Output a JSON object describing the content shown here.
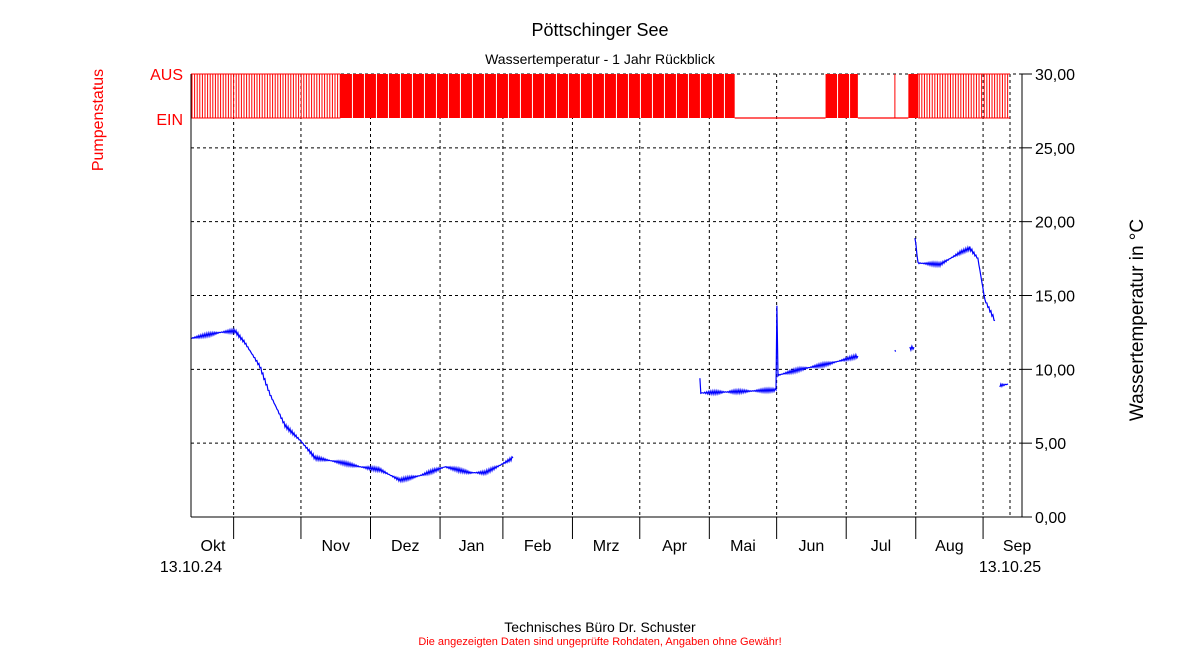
{
  "chart_data": {
    "type": "line",
    "title": "Pöttschinger See",
    "subtitle": "Wassertemperatur - 1 Jahr Rückblick",
    "ylabel": "Wassertemperatur in °C",
    "pump_label": "Pumpenstatus",
    "pump_states": [
      "AUS",
      "EIN"
    ],
    "ylim": [
      0,
      30
    ],
    "yticks": [
      "0,00",
      "5,00",
      "10,00",
      "15,00",
      "20,00",
      "25,00",
      "30,00"
    ],
    "start_date": "13.10.24",
    "end_date": "13.10.25",
    "x_unit": "days since 13.10.24",
    "xlim": [
      0,
      370
    ],
    "month_ticks_days": [
      19,
      49,
      80,
      111,
      139,
      170,
      200,
      231,
      261,
      292,
      323,
      353
    ],
    "month_labels": [
      "Okt",
      "Nov",
      "Dez",
      "Jan",
      "Feb",
      "Mrz",
      "Apr",
      "Mai",
      "Jun",
      "Jul",
      "Aug",
      "Sep"
    ],
    "grid": true,
    "series": [
      {
        "name": "Wassertemperatur",
        "color": "#0000ff",
        "segments": [
          [
            [
              0,
              12.1
            ],
            [
              6.2,
              12.3
            ],
            [
              12.9,
              12.5
            ],
            [
              19.6,
              12.6
            ],
            [
              24,
              11.8
            ],
            [
              30.7,
              10.2
            ],
            [
              35.2,
              8.3
            ],
            [
              41.9,
              6.2
            ],
            [
              48.6,
              5.2
            ],
            [
              55.3,
              4.0
            ],
            [
              66.4,
              3.7
            ],
            [
              75.3,
              3.4
            ],
            [
              84.2,
              3.2
            ],
            [
              93.1,
              2.5
            ],
            [
              102,
              2.8
            ],
            [
              113.2,
              3.4
            ],
            [
              124.3,
              3.0
            ],
            [
              131,
              3.0
            ],
            [
              137.7,
              3.5
            ],
            [
              143.5,
              4.0
            ]
          ],
          [
            [
              226.8,
              9.4
            ],
            [
              227.2,
              8.4
            ],
            [
              244.7,
              8.5
            ],
            [
              260.7,
              8.6
            ],
            [
              261.1,
              14.3
            ],
            [
              261.6,
              9.6
            ],
            [
              271.4,
              10.0
            ],
            [
              284.8,
              10.4
            ],
            [
              297.2,
              10.9
            ]
          ],
          [
            [
              313.7,
              11.3
            ],
            [
              314.0,
              11.2
            ]
          ],
          [
            [
              320.4,
              11.4
            ],
            [
              322.2,
              11.5
            ]
          ],
          [
            [
              322.6,
              19.0
            ],
            [
              324,
              17.2
            ],
            [
              333.8,
              17.1
            ],
            [
              342.7,
              17.9
            ],
            [
              347.1,
              18.2
            ],
            [
              350.7,
              17.5
            ],
            [
              353.8,
              14.7
            ],
            [
              358.3,
              13.3
            ]
          ],
          [
            [
              360.5,
              8.9
            ],
            [
              364.1,
              9.0
            ]
          ]
        ]
      },
      {
        "name": "Pumpenstatus",
        "color": "#ff0000",
        "intervals": [
          {
            "from": 0,
            "to": 66.6,
            "state": "switching"
          },
          {
            "from": 66.6,
            "to": 242.3,
            "state": "on"
          },
          {
            "from": 242.3,
            "to": 282.8,
            "state": "aus"
          },
          {
            "from": 282.8,
            "to": 297.2,
            "state": "on"
          },
          {
            "from": 297.2,
            "to": 319.7,
            "state": "aus"
          },
          {
            "from": 319.7,
            "to": 324.1,
            "state": "on"
          },
          {
            "from": 324.1,
            "to": 365,
            "state": "switching"
          }
        ]
      }
    ]
  },
  "footer": {
    "company": "Technisches Büro Dr. Schuster",
    "disclaimer": "Die angezeigten Daten sind ungeprüfte Rohdaten, Angaben ohne Gewähr!"
  }
}
